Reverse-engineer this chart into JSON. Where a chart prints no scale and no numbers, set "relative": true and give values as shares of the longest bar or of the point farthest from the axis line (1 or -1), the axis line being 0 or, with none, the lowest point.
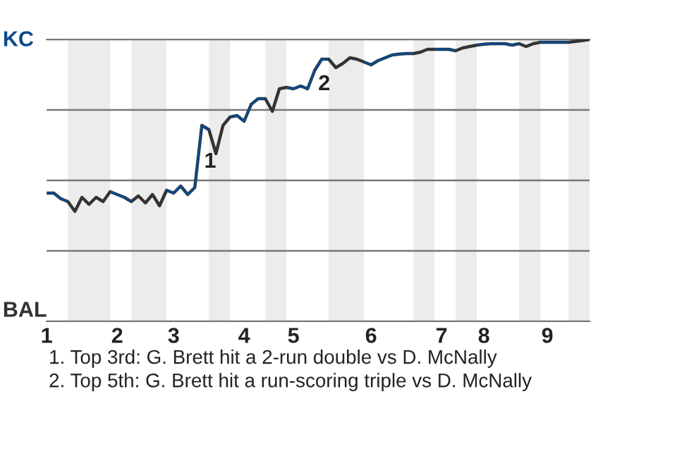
{
  "chart_data": {
    "type": "line",
    "relative": true,
    "categories": [
      "1",
      null,
      null,
      null,
      null,
      null,
      null,
      null,
      null,
      null,
      "2",
      null,
      null,
      null,
      null,
      null,
      null,
      null,
      "3",
      null,
      null,
      null,
      null,
      null,
      null,
      null,
      null,
      null,
      "4",
      null,
      null,
      null,
      null,
      null,
      null,
      "5",
      null,
      null,
      null,
      null,
      null,
      null,
      null,
      null,
      null,
      null,
      "6",
      null,
      null,
      null,
      null,
      null,
      null,
      null,
      null,
      null,
      "7",
      null,
      null,
      null,
      null,
      null,
      "8",
      null,
      null,
      null,
      null,
      null,
      null,
      null,
      null,
      "9",
      null,
      null,
      null,
      null,
      null,
      null
    ],
    "series": [
      {
        "color": "#333333",
        "values": [
          0.455,
          0.455,
          0.435,
          0.425,
          0.39,
          0.44,
          0.415,
          0.44,
          0.425,
          0.46,
          0.45,
          0.44,
          0.425,
          0.445,
          0.42,
          0.45,
          0.41,
          0.465,
          0.455,
          0.48,
          0.45,
          0.475,
          0.695,
          0.68,
          0.595,
          0.695,
          0.725,
          0.73,
          0.71,
          0.77,
          0.79,
          0.79,
          0.745,
          0.825,
          0.83,
          0.825,
          0.835,
          0.825,
          0.89,
          0.93,
          0.93,
          0.9,
          0.915,
          0.935,
          0.93,
          0.92,
          0.91,
          0.925,
          0.935,
          0.945,
          0.948,
          0.95,
          0.95,
          0.955,
          0.965,
          0.965,
          0.965,
          0.965,
          0.96,
          0.97,
          0.975,
          0.98,
          0.983,
          0.985,
          0.985,
          0.985,
          0.98,
          0.985,
          0.975,
          0.985,
          0.99,
          0.99,
          0.99,
          0.99,
          0.99,
          0.993,
          0.996,
          1.0
        ],
        "colors": [
          "#0b4a8b",
          "#0b4a8b",
          "#0b4a8b",
          "#333333",
          "#333333",
          "#333333",
          "#333333",
          "#333333",
          "#333333",
          "#0b4a8b",
          "#0b4a8b",
          "#0b4a8b",
          "#333333",
          "#333333",
          "#333333",
          "#333333",
          "#333333",
          "#0b4a8b",
          "#0b4a8b",
          "#0b4a8b",
          "#0b4a8b",
          "#0b4a8b",
          "#0b4a8b",
          "#333333",
          "#333333",
          "#333333",
          "#0b4a8b",
          "#0b4a8b",
          "#0b4a8b",
          "#0b4a8b",
          "#0b4a8b",
          "#333333",
          "#333333",
          "#333333",
          "#0b4a8b",
          "#0b4a8b",
          "#0b4a8b",
          "#0b4a8b",
          "#0b4a8b",
          "#0b4a8b",
          "#333333",
          "#333333",
          "#333333",
          "#333333",
          "#333333",
          "#0b4a8b",
          "#0b4a8b",
          "#0b4a8b",
          "#0b4a8b",
          "#0b4a8b",
          "#0b4a8b",
          "#0b4a8b",
          "#333333",
          "#333333",
          "#333333",
          "#0b4a8b",
          "#0b4a8b",
          "#0b4a8b",
          "#333333",
          "#333333",
          "#333333",
          "#0b4a8b",
          "#0b4a8b",
          "#0b4a8b",
          "#0b4a8b",
          "#0b4a8b",
          "#0b4a8b",
          "#333333",
          "#333333",
          "#333333",
          "#0b4a8b",
          "#0b4a8b",
          "#0b4a8b",
          "#0b4a8b",
          "#333333",
          "#333333",
          "#333333",
          "#333333"
        ]
      }
    ],
    "grid": "y",
    "line_style": "solid",
    "annotations": [
      "1",
      "2",
      "KC",
      "BAL",
      "1. Top 3rd: G. Brett hit a 2-run double vs D. McNally",
      "2. Top 5th: G. Brett hit a run-scoring triple vs D. McNally"
    ]
  }
}
